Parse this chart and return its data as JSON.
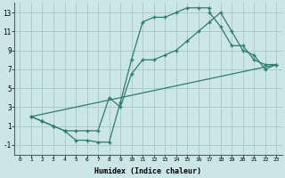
{
  "xlabel": "Humidex (Indice chaleur)",
  "bg_color": "#cce5e5",
  "grid_color": "#aacccc",
  "line_color": "#2e7d6e",
  "xlim": [
    -0.5,
    23.5
  ],
  "ylim": [
    -2.0,
    14.0
  ],
  "xticks": [
    0,
    1,
    2,
    3,
    4,
    5,
    6,
    7,
    8,
    9,
    10,
    11,
    12,
    13,
    14,
    15,
    16,
    17,
    18,
    19,
    20,
    21,
    22,
    23
  ],
  "yticks": [
    -1,
    1,
    3,
    5,
    7,
    9,
    11,
    13
  ],
  "line1_x": [
    1,
    2,
    3,
    4,
    5,
    6,
    7,
    8,
    9,
    10,
    11,
    12,
    13,
    14,
    15,
    16,
    17,
    17,
    18,
    19,
    20,
    21,
    22,
    23
  ],
  "line1_y": [
    2,
    1.5,
    1,
    0.5,
    -0.5,
    -0.5,
    -0.7,
    -0.7,
    3.5,
    8,
    12,
    12.5,
    12.5,
    13,
    13.5,
    13.5,
    13.5,
    13,
    11.5,
    9.5,
    9.5,
    8,
    7.5,
    7.5
  ],
  "line2_x": [
    1,
    2,
    3,
    4,
    5,
    6,
    7,
    8,
    9,
    10,
    11,
    12,
    13,
    14,
    15,
    16,
    17,
    18,
    19,
    20,
    21,
    22,
    23
  ],
  "line2_y": [
    2,
    1.5,
    1,
    0.5,
    0.5,
    0.5,
    0.5,
    4,
    3,
    6.5,
    8,
    8,
    8.5,
    9,
    10,
    11,
    12,
    13,
    11,
    9,
    8.5,
    7,
    7.5
  ],
  "line3_x": [
    1,
    23
  ],
  "line3_y": [
    2,
    7.5
  ]
}
